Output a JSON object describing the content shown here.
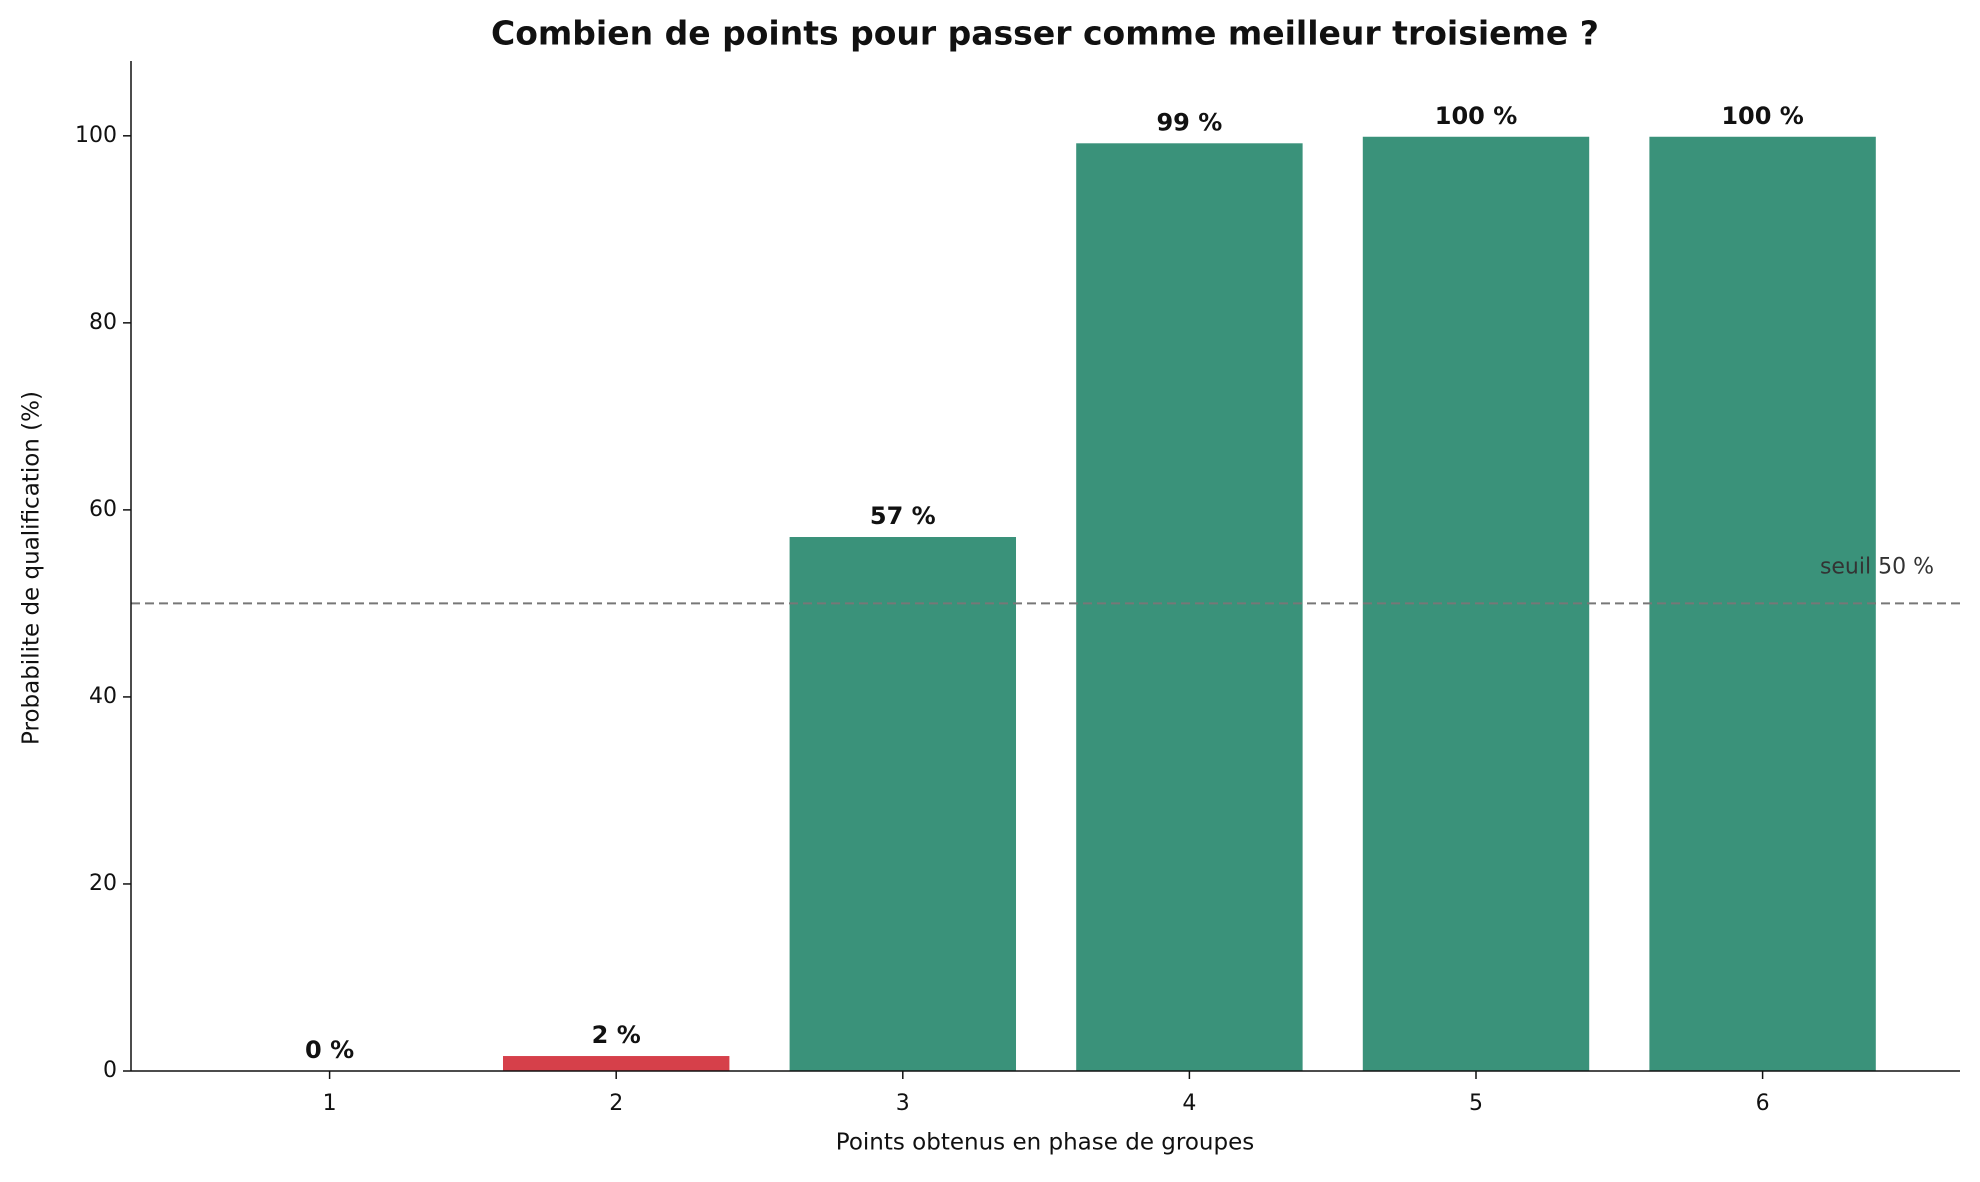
{
  "chart_data": {
    "type": "bar",
    "title": "Combien de points pour passer comme meilleur troisieme ?",
    "x_label": "Points obtenus en phase de groupes",
    "y_label": "Probabilite de qualification (%)",
    "categories": [
      "1",
      "2",
      "3",
      "4",
      "5",
      "6"
    ],
    "values": [
      0,
      1.6,
      57.1,
      99.2,
      99.9,
      99.9
    ],
    "value_labels": [
      "0 %",
      "2 %",
      "57 %",
      "99 %",
      "100 %",
      "100 %"
    ],
    "colors": [
      "#d6404a",
      "#d6404a",
      "#3a927a",
      "#3a927a",
      "#3a927a",
      "#3a927a"
    ],
    "ylim": [
      0,
      108
    ],
    "yticks": [
      0,
      20,
      40,
      60,
      80,
      100
    ],
    "threshold": 50,
    "threshold_label": "seuil 50 %",
    "threshold_color": "#777777"
  }
}
